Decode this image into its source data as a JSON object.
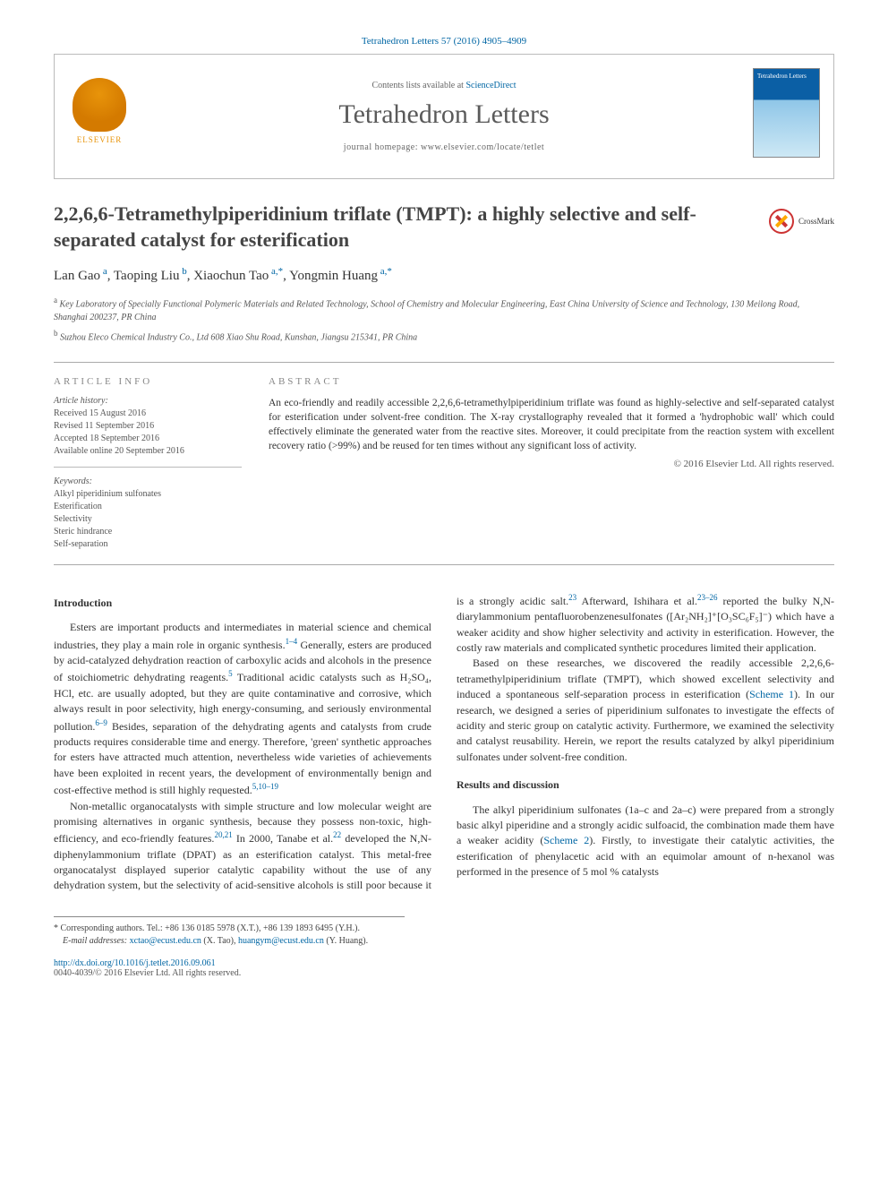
{
  "citation": "Tetrahedron Letters 57 (2016) 4905–4909",
  "header": {
    "contents_prefix": "Contents lists available at ",
    "contents_link": "ScienceDirect",
    "journal_title": "Tetrahedron Letters",
    "homepage_prefix": "journal homepage: ",
    "homepage_url": "www.elsevier.com/locate/tetlet",
    "elsevier_label": "ELSEVIER",
    "cover_title": "Tetrahedron Letters"
  },
  "crossmark": "CrossMark",
  "title": "2,2,6,6-Tetramethylpiperidinium triflate (TMPT): a highly selective and self-separated catalyst for esterification",
  "authors": [
    {
      "name": "Lan Gao",
      "sup": "a"
    },
    {
      "name": "Taoping Liu",
      "sup": "b"
    },
    {
      "name": "Xiaochun Tao",
      "sup": "a,*"
    },
    {
      "name": "Yongmin Huang",
      "sup": "a,*"
    }
  ],
  "affiliations": [
    {
      "sup": "a",
      "text": "Key Laboratory of Specially Functional Polymeric Materials and Related Technology, School of Chemistry and Molecular Engineering, East China University of Science and Technology, 130 Meilong Road, Shanghai 200237, PR China"
    },
    {
      "sup": "b",
      "text": "Suzhou Eleco Chemical Industry Co., Ltd 608 Xiao Shu Road, Kunshan, Jiangsu 215341, PR China"
    }
  ],
  "info": {
    "heading": "ARTICLE INFO",
    "history_label": "Article history:",
    "history": [
      "Received 15 August 2016",
      "Revised 11 September 2016",
      "Accepted 18 September 2016",
      "Available online 20 September 2016"
    ],
    "keywords_label": "Keywords:",
    "keywords": [
      "Alkyl piperidinium sulfonates",
      "Esterification",
      "Selectivity",
      "Steric hindrance",
      "Self-separation"
    ]
  },
  "abstract": {
    "heading": "ABSTRACT",
    "text": "An eco-friendly and readily accessible 2,2,6,6-tetramethylpiperidinium triflate was found as highly-selective and self-separated catalyst for esterification under solvent-free condition. The X-ray crystallography revealed that it formed a 'hydrophobic wall' which could effectively eliminate the generated water from the reactive sites. Moreover, it could precipitate from the reaction system with excellent recovery ratio (>99%) and be reused for ten times without any significant loss of activity.",
    "copyright": "© 2016 Elsevier Ltd. All rights reserved."
  },
  "sections": {
    "intro_heading": "Introduction",
    "intro_paragraphs": [
      {
        "text": "Esters are important products and intermediates in material science and chemical industries, they play a main role in organic synthesis.",
        "ref": "1–4",
        "tail": " Generally, esters are produced by acid-catalyzed dehydration reaction of carboxylic acids and alcohols in the presence of stoichiometric dehydrating reagents.",
        "ref2": "5",
        "tail2": " Traditional acidic catalysts such as H₂SO₄, HCl, etc. are usually adopted, but they are quite contaminative and corrosive, which always result in poor selectivity, high energy-consuming, and seriously environmental pollution.",
        "ref3": "6–9",
        "tail3": " Besides, separation of the dehydrating agents and catalysts from crude products requires considerable time and energy. Therefore, 'green' synthetic approaches for esters have attracted much attention, nevertheless wide varieties of achievements have been exploited in recent years, the development of environmentally benign and cost-effective method is still highly requested.",
        "ref4": "5,10–19"
      },
      {
        "text": "Non-metallic organocatalysts with simple structure and low molecular weight are promising alternatives in organic synthesis, because they possess non-toxic, high-efficiency, and eco-friendly features.",
        "ref": "20,21",
        "tail": " In 2000, Tanabe et al.",
        "ref2": "22",
        "tail2": " developed the N,N-diphenylammonium triflate (DPAT) as an esterification catalyst. This metal-free organocatalyst displayed superior catalytic capability without the use of any dehydration system, but the selectivity of acid-sensitive alcohols is still poor because it is a strongly acidic salt.",
        "ref3": "23",
        "tail3": " Afterward, Ishihara et al.",
        "ref4": "23–26",
        "tail4": " reported the bulky N,N-diarylammonium pentafluorobenzenesulfonates ([Ar₂NH₂]⁺[O₃SC₆F₅]⁻) which have a weaker acidity and show higher selectivity and activity in esterification. However, the costly raw materials and complicated synthetic procedures limited their application."
      },
      {
        "text": "Based on these researches, we discovered the readily accessible 2,2,6,6-tetramethylpiperidinium triflate (TMPT), which showed excellent selectivity and induced a spontaneous self-separation process in esterification (",
        "scheme": "Scheme 1",
        "tail": "). In our research, we designed a series of piperidinium sulfonates to investigate the effects of acidity and steric group on catalytic activity. Furthermore, we examined the selectivity and catalyst reusability. Herein, we report the results catalyzed by alkyl piperidinium sulfonates under solvent-free condition."
      }
    ],
    "results_heading": "Results and discussion",
    "results_p": {
      "text": "The alkyl piperidinium sulfonates (1a–c and 2a–c) were prepared from a strongly basic alkyl piperidine and a strongly acidic sulfoacid, the combination made them have a weaker acidity (",
      "scheme": "Scheme 2",
      "tail": "). Firstly, to investigate their catalytic activities, the esterification of phenylacetic acid with an equimolar amount of n-hexanol was performed in the presence of 5 mol % catalysts"
    }
  },
  "footnotes": {
    "corresponding": "* Corresponding authors. Tel.: +86 136 0185 5978 (X.T.), +86 139 1893 6495 (Y.H.).",
    "email_label": "E-mail addresses:",
    "emails": [
      {
        "addr": "xctao@ecust.edu.cn",
        "who": "(X. Tao),"
      },
      {
        "addr": "huangym@ecust.edu.cn",
        "who": "(Y. Huang)."
      }
    ]
  },
  "doi": {
    "url": "http://dx.doi.org/10.1016/j.tetlet.2016.09.061",
    "issn": "0040-4039/© 2016 Elsevier Ltd. All rights reserved."
  },
  "colors": {
    "link": "#0066a4",
    "border": "#aaaaaa",
    "text": "#333333",
    "muted": "#666666"
  }
}
